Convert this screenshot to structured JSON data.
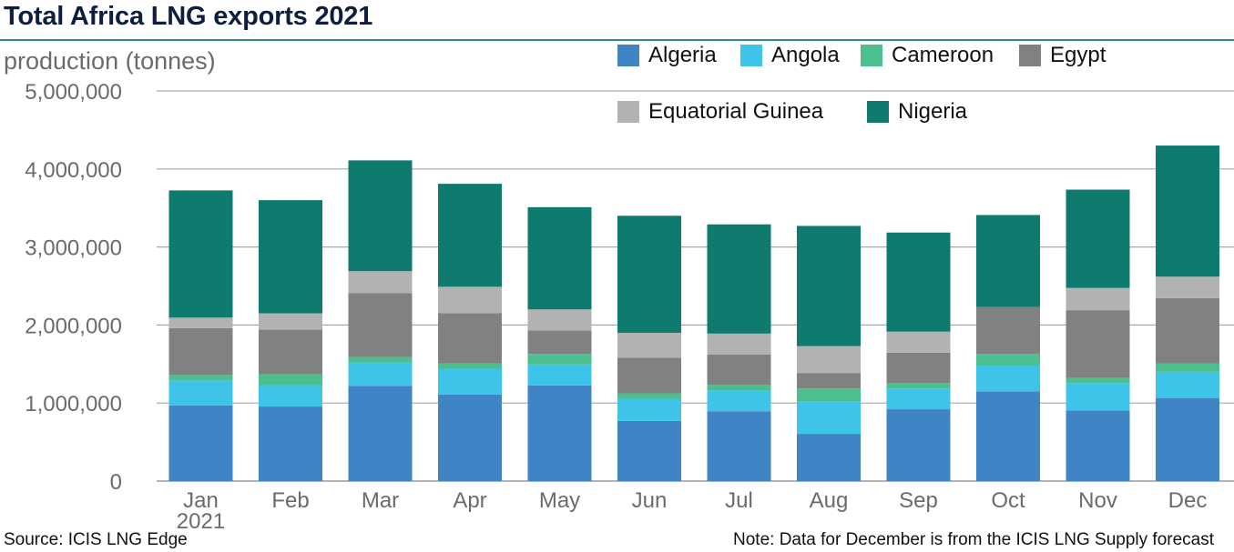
{
  "header": {
    "title": "Total Africa LNG exports 2021"
  },
  "footer": {
    "source": "Source: ICIS LNG Edge",
    "note": "Note: Data for December is from the ICIS LNG Supply forecast"
  },
  "chart_data": {
    "type": "bar",
    "stacked": true,
    "title": "Total Africa LNG exports 2021",
    "ylabel": "production (tonnes)",
    "xlabel": "",
    "ylim": [
      0,
      5000000
    ],
    "yticks": [
      "0",
      "1,000,000",
      "2,000,000",
      "3,000,000",
      "4,000,000",
      "5,000,000"
    ],
    "categories": [
      "Jan",
      "Feb",
      "Mar",
      "Apr",
      "May",
      "Jun",
      "Jul",
      "Aug",
      "Sep",
      "Oct",
      "Nov",
      "Dec"
    ],
    "x_sublabel": "2021",
    "grid": true,
    "legend_position": "top-right",
    "series": [
      {
        "name": "Algeria",
        "color": "#3f84c5",
        "values": [
          970000,
          955000,
          1220000,
          1110000,
          1225000,
          770000,
          895000,
          605000,
          920000,
          1150000,
          905000,
          1065000
        ]
      },
      {
        "name": "Angola",
        "color": "#3ec4e8",
        "values": [
          320000,
          275000,
          300000,
          330000,
          270000,
          285000,
          270000,
          420000,
          265000,
          330000,
          350000,
          335000
        ]
      },
      {
        "name": "Cameroon",
        "color": "#4dbf8e",
        "values": [
          70000,
          140000,
          70000,
          70000,
          135000,
          70000,
          70000,
          160000,
          70000,
          150000,
          65000,
          105000
        ]
      },
      {
        "name": "Egypt",
        "color": "#808282",
        "values": [
          600000,
          570000,
          820000,
          640000,
          300000,
          455000,
          385000,
          200000,
          390000,
          600000,
          870000,
          840000
        ]
      },
      {
        "name": "Equatorial Guinea",
        "color": "#b1b3b2",
        "values": [
          135000,
          210000,
          280000,
          340000,
          270000,
          320000,
          270000,
          345000,
          270000,
          0,
          285000,
          275000
        ]
      },
      {
        "name": "Nigeria",
        "color": "#0f7b6f",
        "values": [
          1630000,
          1450000,
          1420000,
          1320000,
          1310000,
          1500000,
          1400000,
          1540000,
          1270000,
          1180000,
          1260000,
          1680000
        ]
      }
    ]
  }
}
